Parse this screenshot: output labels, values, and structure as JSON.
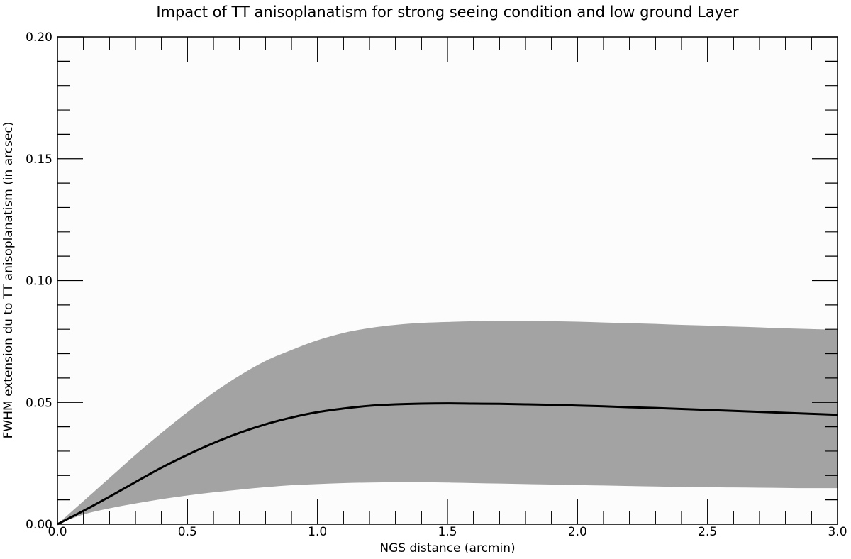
{
  "chart_data": {
    "type": "area",
    "title": "Impact of TT anisoplanatism for strong seeing condition and low ground Layer",
    "xlabel": "NGS distance (arcmin)",
    "ylabel": "FWHM extension du to TT anisoplanatism (in arcsec)",
    "xlim": [
      0.0,
      3.0
    ],
    "ylim": [
      0.0,
      0.2
    ],
    "x_major_ticks": [
      0.0,
      0.5,
      1.0,
      1.5,
      2.0,
      2.5,
      3.0
    ],
    "x_tick_labels": [
      "0.0",
      "0.5",
      "1.0",
      "1.5",
      "2.0",
      "2.5",
      "3.0"
    ],
    "x_minor_step": 0.1,
    "y_major_ticks": [
      0.0,
      0.05,
      0.1,
      0.15,
      0.2
    ],
    "y_tick_labels": [
      "0.00",
      "0.05",
      "0.10",
      "0.15",
      "0.20"
    ],
    "y_minor_step": 0.01,
    "grid": false,
    "x": [
      0.0,
      0.1,
      0.2,
      0.3,
      0.4,
      0.5,
      0.6,
      0.7,
      0.8,
      0.9,
      1.0,
      1.1,
      1.2,
      1.3,
      1.4,
      1.5,
      1.6,
      1.7,
      1.8,
      1.9,
      2.0,
      2.1,
      2.2,
      2.3,
      2.4,
      2.5,
      2.6,
      2.7,
      2.8,
      2.9,
      3.0
    ],
    "series": [
      {
        "name": "upper bound",
        "role": "band-upper",
        "color": "#a3a3a3",
        "values": [
          0.0,
          0.0095,
          0.019,
          0.0285,
          0.0375,
          0.046,
          0.054,
          0.061,
          0.067,
          0.0715,
          0.0755,
          0.0785,
          0.0805,
          0.0818,
          0.0826,
          0.083,
          0.0833,
          0.0834,
          0.0834,
          0.0833,
          0.0831,
          0.0828,
          0.0825,
          0.0822,
          0.0818,
          0.0815,
          0.0811,
          0.0808,
          0.0804,
          0.0801,
          0.0798
        ]
      },
      {
        "name": "lower bound",
        "role": "band-lower",
        "color": "#a3a3a3",
        "values": [
          0.0,
          0.004,
          0.0065,
          0.0085,
          0.0103,
          0.0118,
          0.0131,
          0.0142,
          0.0152,
          0.016,
          0.0165,
          0.0169,
          0.0171,
          0.0172,
          0.0172,
          0.0171,
          0.0169,
          0.0167,
          0.0165,
          0.0163,
          0.0161,
          0.0159,
          0.0157,
          0.0155,
          0.0153,
          0.0152,
          0.0151,
          0.015,
          0.0149,
          0.0148,
          0.0148
        ]
      },
      {
        "name": "mean",
        "role": "line",
        "color": "#000000",
        "values": [
          0.0,
          0.0055,
          0.0113,
          0.0173,
          0.0232,
          0.0285,
          0.0333,
          0.0375,
          0.041,
          0.0438,
          0.046,
          0.0475,
          0.0486,
          0.0492,
          0.0495,
          0.0496,
          0.0495,
          0.0494,
          0.0492,
          0.049,
          0.0487,
          0.0484,
          0.048,
          0.0477,
          0.0473,
          0.0469,
          0.0465,
          0.0461,
          0.0457,
          0.0453,
          0.0449
        ]
      }
    ]
  }
}
